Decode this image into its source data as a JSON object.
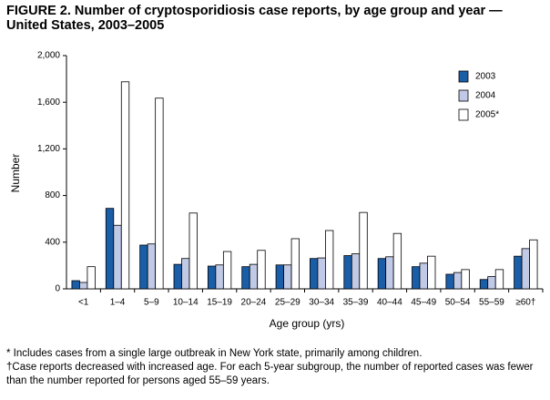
{
  "chart_data": {
    "type": "bar",
    "title": "FIGURE 2. Number of cryptosporidiosis case reports, by age group and year — United States, 2003–2005",
    "x_label": "Age group (yrs)",
    "y_label": "Number",
    "categories": [
      "<1",
      "1–4",
      "5–9",
      "10–14",
      "15–19",
      "20–24",
      "25–29",
      "30–34",
      "35–39",
      "40–44",
      "45–49",
      "50–54",
      "55–59",
      "≥60†"
    ],
    "series": [
      {
        "name": "2003",
        "color": "#1a5ea8",
        "values": [
          70,
          690,
          375,
          210,
          195,
          190,
          205,
          260,
          285,
          260,
          190,
          125,
          80,
          280
        ]
      },
      {
        "name": "2004",
        "color": "#c0c9e6",
        "values": [
          55,
          545,
          385,
          260,
          205,
          210,
          205,
          265,
          300,
          275,
          220,
          140,
          105,
          345
        ]
      },
      {
        "name": "2005*",
        "color": "#ffffff",
        "values": [
          190,
          1775,
          1635,
          650,
          320,
          330,
          430,
          500,
          655,
          475,
          280,
          165,
          165,
          420
        ]
      }
    ],
    "ylim": [
      0,
      2000
    ],
    "yticks": [
      0,
      400,
      800,
      {
        "value": 1200,
        "label": "1,200"
      },
      {
        "value": 1600,
        "label": "1,600"
      },
      {
        "value": 2000,
        "label": "2,000"
      }
    ],
    "grid": false,
    "legend": "upper right",
    "footnotes": [
      "* Includes cases from a single large outbreak in New York state, primarily among children.",
      "†Case reports decreased with increased age. For each 5-year subgroup, the number of reported cases was fewer than the number reported for persons aged 55–59 years."
    ]
  }
}
